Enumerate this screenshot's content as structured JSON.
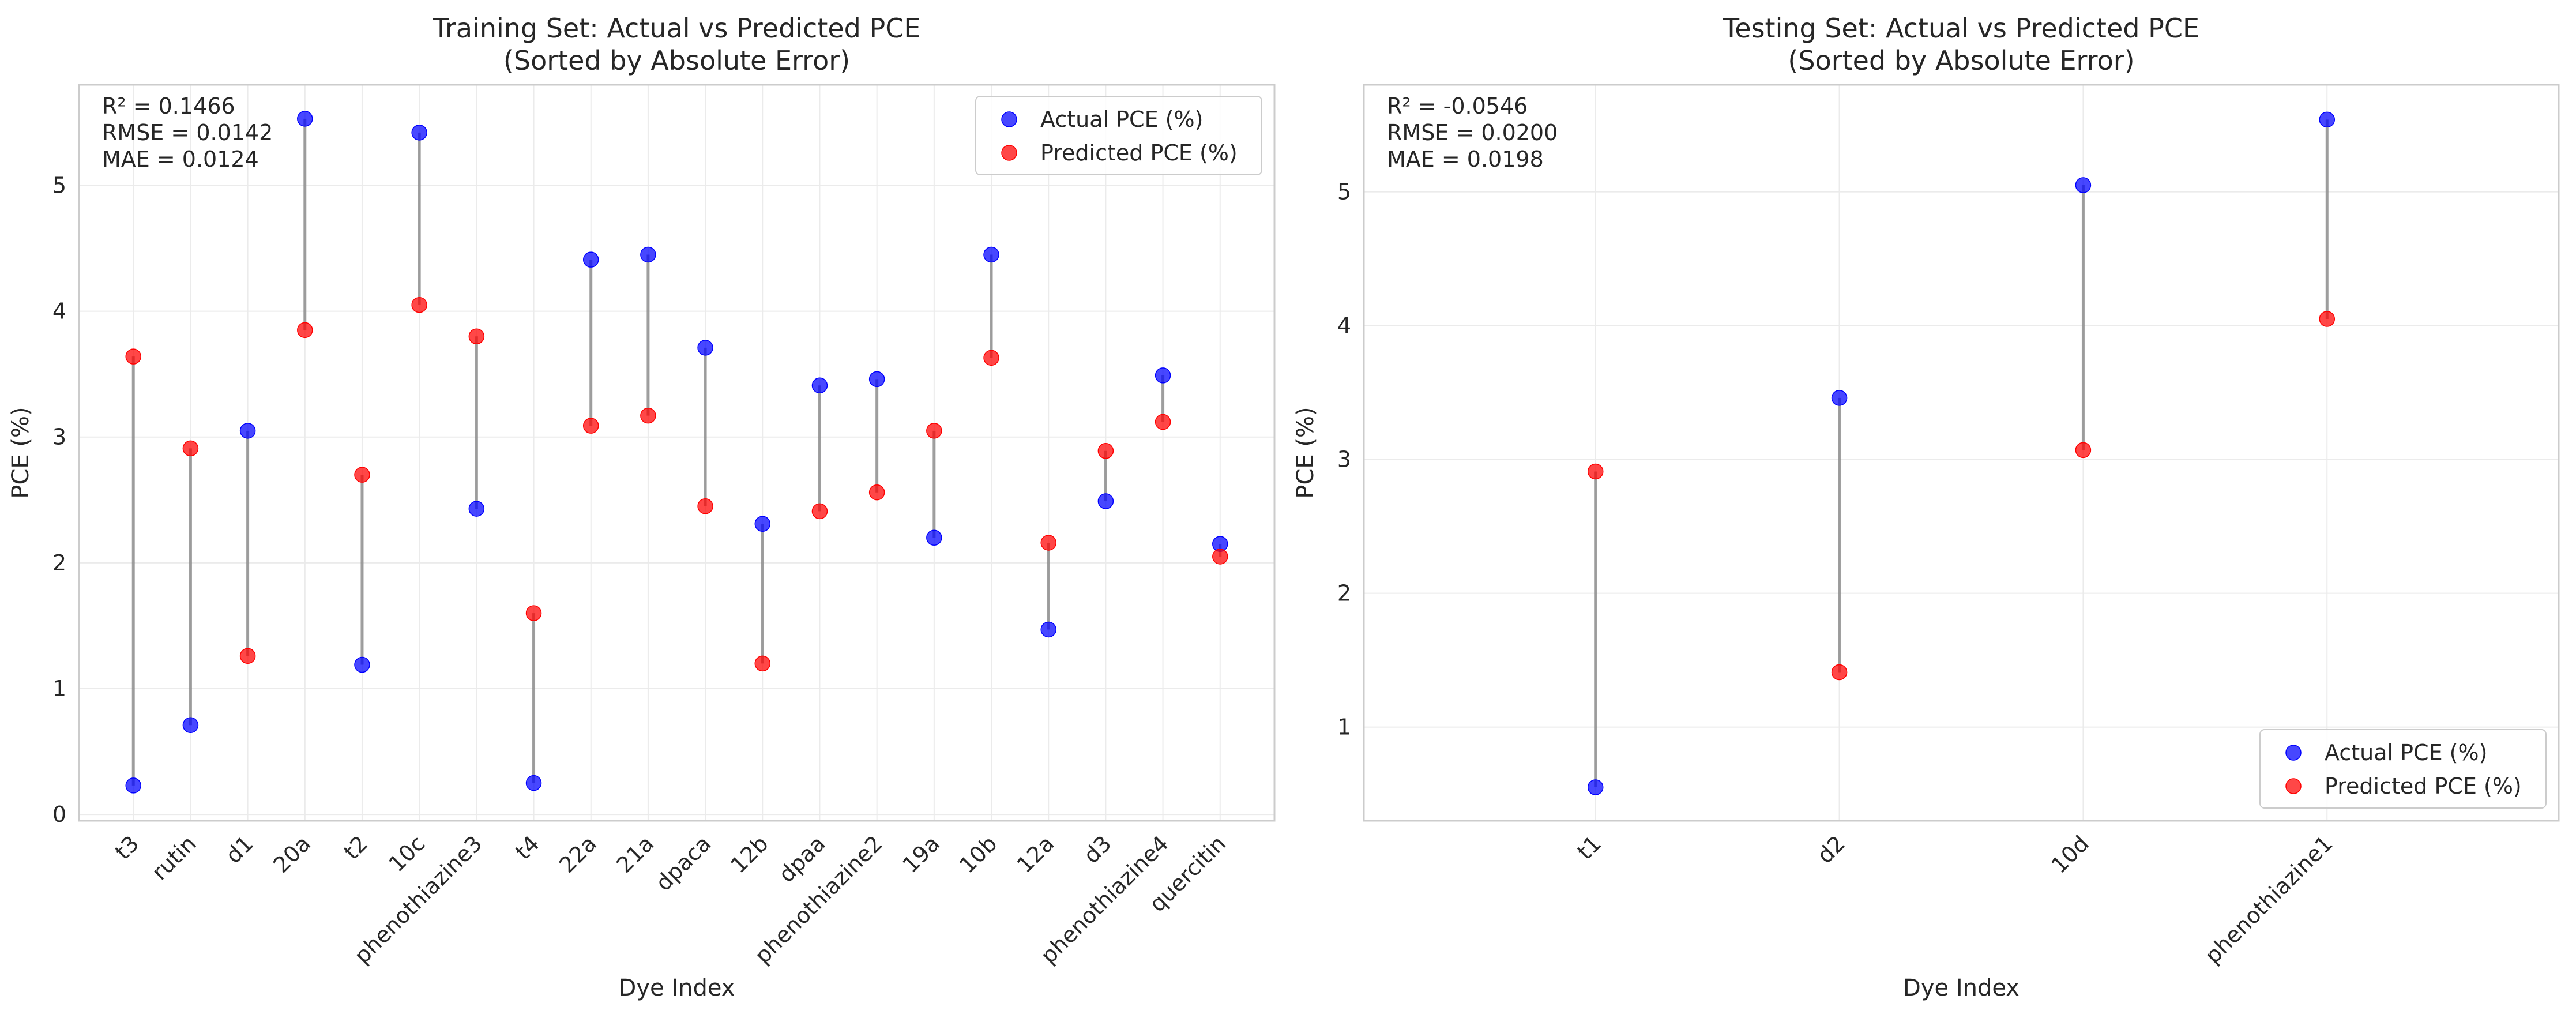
{
  "chart_data": [
    {
      "type": "scatter",
      "title": "Training Set: Actual vs Predicted PCE",
      "subtitle": "(Sorted by Absolute Error)",
      "xlabel": "Dye Index",
      "ylabel": "PCE (%)",
      "categories": [
        "t3",
        "rutin",
        "d1",
        "20a",
        "t2",
        "10c",
        "phenothiazine3",
        "t4",
        "22a",
        "21a",
        "dpaca",
        "12b",
        "dpaa",
        "phenothiazine2",
        "19a",
        "10b",
        "12a",
        "d3",
        "phenothiazine4",
        "quercitin"
      ],
      "series": [
        {
          "name": "Actual PCE (%)",
          "color": "#0000ff",
          "values": [
            0.23,
            0.71,
            3.05,
            5.53,
            1.19,
            5.42,
            2.43,
            0.25,
            4.41,
            4.45,
            3.71,
            2.31,
            3.41,
            3.46,
            2.2,
            4.45,
            1.47,
            2.49,
            3.49,
            2.15
          ]
        },
        {
          "name": "Predicted PCE (%)",
          "color": "#ff0000",
          "values": [
            3.64,
            2.91,
            1.26,
            3.85,
            2.7,
            4.05,
            3.8,
            1.6,
            3.09,
            3.17,
            2.45,
            1.2,
            2.41,
            2.56,
            3.05,
            3.63,
            2.16,
            2.89,
            3.12,
            2.05
          ]
        }
      ],
      "connector_color": "#808080",
      "ylim": [
        -0.05,
        5.8
      ],
      "yticks": [
        0,
        1,
        2,
        3,
        4,
        5
      ],
      "metrics": [
        "R² = 0.1466",
        "RMSE = 0.0142",
        "MAE = 0.0124"
      ],
      "legend_position": "upper right",
      "grid": true
    },
    {
      "type": "scatter",
      "title": "Testing Set: Actual vs Predicted PCE",
      "subtitle": "(Sorted by Absolute Error)",
      "xlabel": "Dye Index",
      "ylabel": "PCE (%)",
      "categories": [
        "t1",
        "d2",
        "10d",
        "phenothiazine1"
      ],
      "series": [
        {
          "name": "Actual PCE (%)",
          "color": "#0000ff",
          "values": [
            0.55,
            3.46,
            5.05,
            5.54
          ]
        },
        {
          "name": "Predicted PCE (%)",
          "color": "#ff0000",
          "values": [
            2.91,
            1.41,
            3.07,
            4.05
          ]
        }
      ],
      "connector_color": "#808080",
      "ylim": [
        0.3,
        5.8
      ],
      "yticks": [
        1,
        2,
        3,
        4,
        5
      ],
      "metrics": [
        "R² = -0.0546",
        "RMSE = 0.0200",
        "MAE = 0.0198"
      ],
      "legend_position": "lower right",
      "grid": true
    }
  ]
}
